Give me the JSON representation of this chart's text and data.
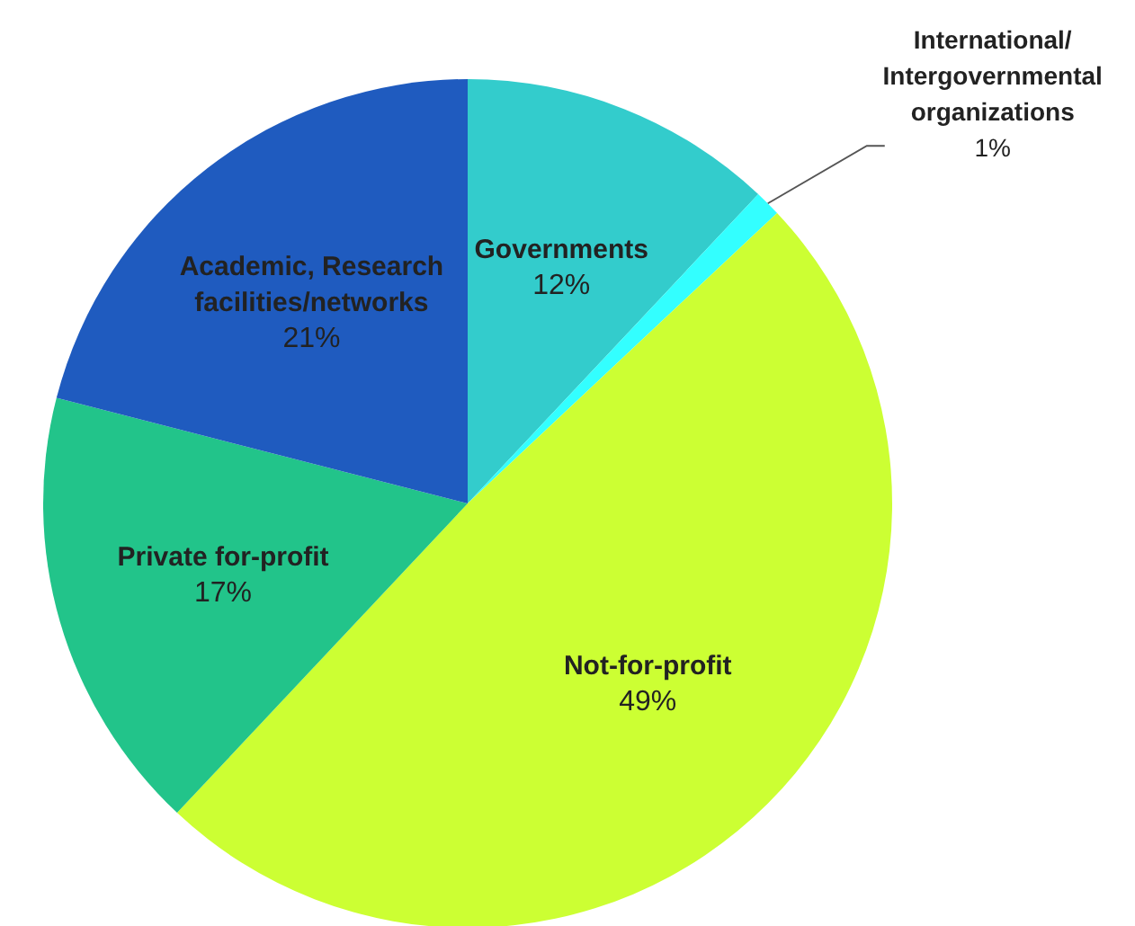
{
  "chart_data": {
    "type": "pie",
    "categories": [
      "Governments",
      "International/ Intergovernmental organizations",
      "Not-for-profit",
      "Private for-profit",
      "Academic, Research facilities/networks"
    ],
    "values": [
      12,
      1,
      49,
      17,
      21
    ],
    "value_labels": [
      "12%",
      "1%",
      "49%",
      "17%",
      "21%"
    ],
    "colors": [
      "#33cccc",
      "#33ffff",
      "#ccff33",
      "#22c48a",
      "#1f5bbf"
    ],
    "legend": false
  }
}
